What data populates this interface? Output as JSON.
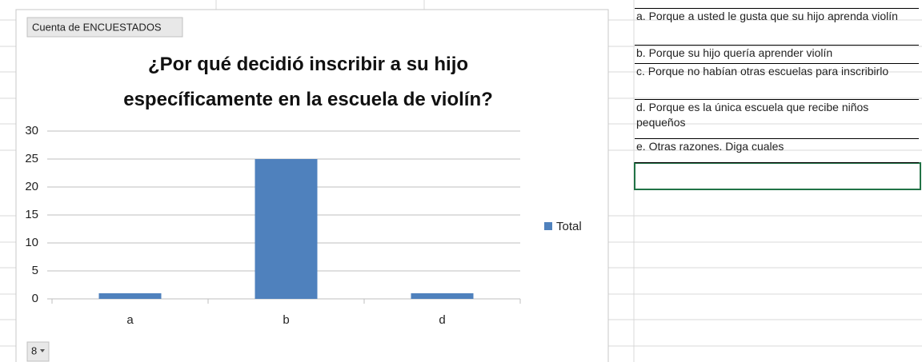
{
  "chart_data": {
    "type": "bar",
    "pivot_button": "Cuenta de ENCUESTADOS",
    "title": "¿Por qué decidió inscribir a su hijo específicamente en la escuela de violín?",
    "categories": [
      "a",
      "b",
      "d"
    ],
    "series": [
      {
        "name": "Total",
        "color": "#4f81bd",
        "values": [
          1,
          25,
          1
        ]
      }
    ],
    "ylim": [
      0,
      30
    ],
    "yticks": [
      0,
      5,
      10,
      15,
      20,
      25,
      30
    ],
    "grid": true,
    "legend": "right",
    "filter_button": "8"
  },
  "cells": [
    "a.   Porque a usted le gusta que su hijo aprenda violín",
    "b.   Porque su hijo quería aprender violín",
    "c.   Porque no habían otras escuelas para inscribirlo",
    "d.   Porque es la única  escuela que recibe niños pequeños",
    "e.   Otras razones. Diga cuales"
  ]
}
